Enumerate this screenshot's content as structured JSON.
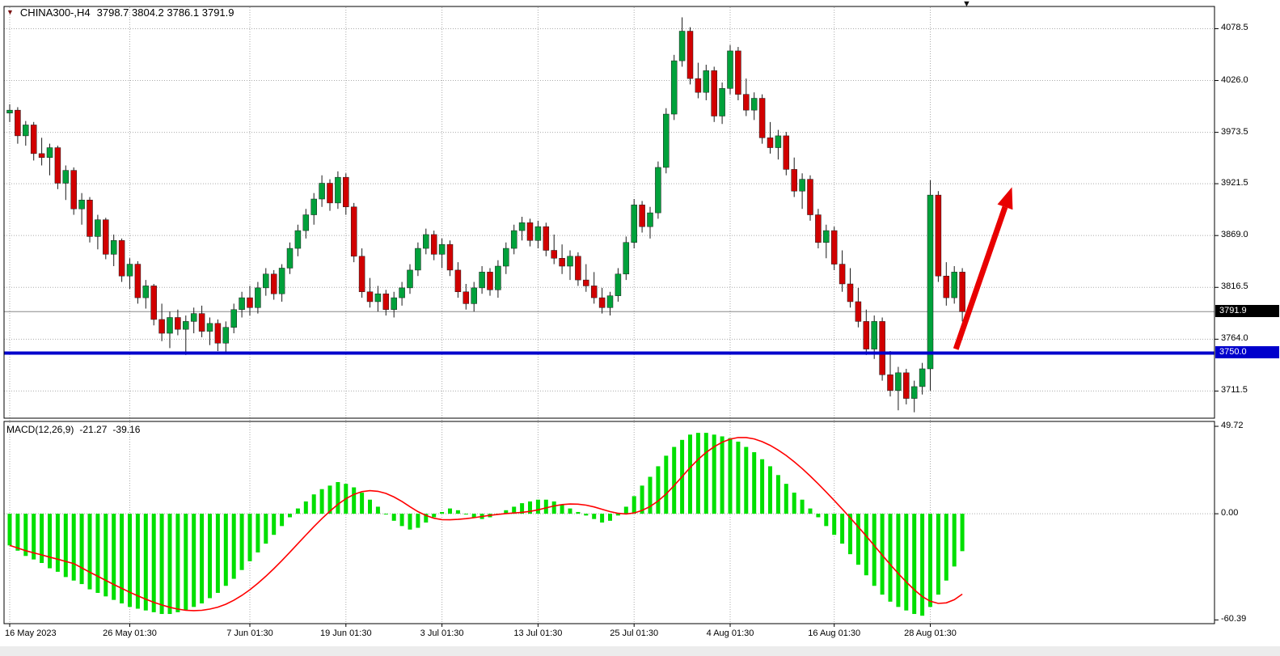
{
  "header": {
    "symbol": "CHINA300-,H4",
    "quote_line": "3798.7 3804.2 3786.1 3791.9"
  },
  "icons": {
    "symbol_marker": "▼",
    "shift_marker": "▼"
  },
  "indicator": {
    "label": "MACD(12,26,9)",
    "macd_value": "-21.27",
    "signal_value": "-39.16"
  },
  "axis": {
    "current_price_label": "3791.9",
    "support_price_label": "3750.0"
  },
  "colors": {
    "candle_up": "#00A13B",
    "candle_down": "#D10000",
    "candle_outline": "#1a1a1a",
    "macd_bar": "#00DF00",
    "signal_line": "#FF0000",
    "support_line": "#0000CC",
    "current_price_line": "#888888",
    "grid": "#ababab",
    "arrow": "#E80000",
    "price_tag_bg": "#000000",
    "support_tag_bg": "#0000CC"
  },
  "chart_data": [
    {
      "type": "candlestick",
      "title": "CHINA300-,H4",
      "timeframe": "H4",
      "quote": {
        "open": 3798.7,
        "high": 3804.2,
        "low": 3786.1,
        "close": 3791.9
      },
      "current_price": 3791.9,
      "support_level": 3750.0,
      "ylim": [
        3684,
        4101
      ],
      "y_ticks": [
        "4078.5",
        "4026.0",
        "3973.5",
        "3921.5",
        "3869.0",
        "3816.5",
        "3764.0",
        "3711.5"
      ],
      "x_labels": [
        {
          "text": "16 May 2023",
          "i": 0
        },
        {
          "text": "26 May 01:30",
          "i": 15
        },
        {
          "text": "7 Jun 01:30",
          "i": 30
        },
        {
          "text": "19 Jun 01:30",
          "i": 42
        },
        {
          "text": "3 Jul 01:30",
          "i": 54
        },
        {
          "text": "13 Jul 01:30",
          "i": 66
        },
        {
          "text": "25 Jul 01:30",
          "i": 78
        },
        {
          "text": "4 Aug 01:30",
          "i": 90
        },
        {
          "text": "16 Aug 01:30",
          "i": 103
        },
        {
          "text": "28 Aug 01:30",
          "i": 115
        }
      ],
      "annotations": [
        {
          "type": "arrow",
          "from_bar": 118.2,
          "from_price": 3754,
          "to_bar": 125.2,
          "to_price": 3918
        }
      ],
      "candles": [
        [
          3993,
          4002,
          3984,
          3996
        ],
        [
          3996,
          3999,
          3962,
          3970
        ],
        [
          3970,
          3985,
          3960,
          3981
        ],
        [
          3981,
          3984,
          3945,
          3952
        ],
        [
          3952,
          3968,
          3940,
          3948
        ],
        [
          3948,
          3962,
          3930,
          3958
        ],
        [
          3958,
          3960,
          3916,
          3922
        ],
        [
          3922,
          3940,
          3905,
          3935
        ],
        [
          3935,
          3938,
          3890,
          3896
        ],
        [
          3896,
          3912,
          3880,
          3905
        ],
        [
          3905,
          3908,
          3862,
          3868
        ],
        [
          3868,
          3890,
          3855,
          3885
        ],
        [
          3885,
          3887,
          3845,
          3850
        ],
        [
          3850,
          3870,
          3838,
          3864
        ],
        [
          3864,
          3866,
          3822,
          3828
        ],
        [
          3828,
          3846,
          3815,
          3840
        ],
        [
          3840,
          3843,
          3800,
          3806
        ],
        [
          3806,
          3824,
          3795,
          3818
        ],
        [
          3818,
          3820,
          3778,
          3784
        ],
        [
          3784,
          3800,
          3762,
          3770
        ],
        [
          3770,
          3792,
          3755,
          3786
        ],
        [
          3786,
          3794,
          3768,
          3774
        ],
        [
          3774,
          3788,
          3748,
          3782
        ],
        [
          3782,
          3796,
          3770,
          3790
        ],
        [
          3790,
          3798,
          3766,
          3772
        ],
        [
          3772,
          3786,
          3758,
          3780
        ],
        [
          3780,
          3784,
          3752,
          3760
        ],
        [
          3760,
          3782,
          3750,
          3776
        ],
        [
          3776,
          3800,
          3770,
          3794
        ],
        [
          3794,
          3812,
          3786,
          3806
        ],
        [
          3806,
          3818,
          3788,
          3796
        ],
        [
          3796,
          3822,
          3790,
          3816
        ],
        [
          3816,
          3836,
          3808,
          3830
        ],
        [
          3830,
          3834,
          3804,
          3810
        ],
        [
          3810,
          3840,
          3802,
          3836
        ],
        [
          3836,
          3862,
          3830,
          3856
        ],
        [
          3856,
          3880,
          3848,
          3874
        ],
        [
          3874,
          3896,
          3866,
          3890
        ],
        [
          3890,
          3912,
          3880,
          3906
        ],
        [
          3906,
          3930,
          3898,
          3922
        ],
        [
          3922,
          3926,
          3894,
          3902
        ],
        [
          3902,
          3934,
          3896,
          3928
        ],
        [
          3928,
          3932,
          3890,
          3898
        ],
        [
          3898,
          3902,
          3842,
          3848
        ],
        [
          3848,
          3856,
          3806,
          3812
        ],
        [
          3812,
          3826,
          3796,
          3802
        ],
        [
          3802,
          3818,
          3792,
          3810
        ],
        [
          3810,
          3814,
          3788,
          3794
        ],
        [
          3794,
          3812,
          3786,
          3806
        ],
        [
          3806,
          3822,
          3798,
          3816
        ],
        [
          3816,
          3840,
          3810,
          3834
        ],
        [
          3834,
          3862,
          3828,
          3856
        ],
        [
          3856,
          3876,
          3850,
          3870
        ],
        [
          3870,
          3874,
          3844,
          3850
        ],
        [
          3850,
          3866,
          3836,
          3860
        ],
        [
          3860,
          3864,
          3828,
          3834
        ],
        [
          3834,
          3842,
          3806,
          3812
        ],
        [
          3812,
          3820,
          3794,
          3800
        ],
        [
          3800,
          3822,
          3792,
          3816
        ],
        [
          3816,
          3838,
          3810,
          3832
        ],
        [
          3832,
          3836,
          3808,
          3814
        ],
        [
          3814,
          3844,
          3806,
          3838
        ],
        [
          3838,
          3862,
          3830,
          3856
        ],
        [
          3856,
          3880,
          3850,
          3874
        ],
        [
          3874,
          3888,
          3864,
          3882
        ],
        [
          3882,
          3886,
          3858,
          3864
        ],
        [
          3864,
          3884,
          3856,
          3878
        ],
        [
          3878,
          3882,
          3848,
          3854
        ],
        [
          3854,
          3870,
          3840,
          3846
        ],
        [
          3846,
          3860,
          3830,
          3838
        ],
        [
          3838,
          3854,
          3824,
          3848
        ],
        [
          3848,
          3852,
          3818,
          3824
        ],
        [
          3824,
          3840,
          3812,
          3818
        ],
        [
          3818,
          3832,
          3800,
          3806
        ],
        [
          3806,
          3816,
          3790,
          3796
        ],
        [
          3796,
          3812,
          3788,
          3808
        ],
        [
          3808,
          3836,
          3802,
          3830
        ],
        [
          3830,
          3868,
          3824,
          3862
        ],
        [
          3862,
          3906,
          3856,
          3900
        ],
        [
          3900,
          3904,
          3872,
          3878
        ],
        [
          3878,
          3898,
          3866,
          3892
        ],
        [
          3892,
          3944,
          3886,
          3938
        ],
        [
          3938,
          3998,
          3932,
          3992
        ],
        [
          3992,
          4052,
          3986,
          4046
        ],
        [
          4046,
          4090,
          4040,
          4076
        ],
        [
          4076,
          4080,
          4022,
          4028
        ],
        [
          4028,
          4044,
          4008,
          4014
        ],
        [
          4014,
          4042,
          4006,
          4036
        ],
        [
          4036,
          4040,
          3984,
          3990
        ],
        [
          3990,
          4024,
          3982,
          4018
        ],
        [
          4018,
          4062,
          4012,
          4056
        ],
        [
          4056,
          4060,
          4006,
          4012
        ],
        [
          4012,
          4028,
          3990,
          3996
        ],
        [
          3996,
          4014,
          3986,
          4008
        ],
        [
          4008,
          4012,
          3962,
          3968
        ],
        [
          3968,
          3984,
          3952,
          3958
        ],
        [
          3958,
          3976,
          3946,
          3970
        ],
        [
          3970,
          3974,
          3930,
          3936
        ],
        [
          3936,
          3948,
          3908,
          3914
        ],
        [
          3914,
          3932,
          3896,
          3926
        ],
        [
          3926,
          3930,
          3884,
          3890
        ],
        [
          3890,
          3896,
          3856,
          3862
        ],
        [
          3862,
          3880,
          3846,
          3874
        ],
        [
          3874,
          3878,
          3834,
          3840
        ],
        [
          3840,
          3854,
          3812,
          3820
        ],
        [
          3820,
          3836,
          3796,
          3802
        ],
        [
          3802,
          3816,
          3776,
          3782
        ],
        [
          3782,
          3794,
          3748,
          3754
        ],
        [
          3754,
          3788,
          3744,
          3782
        ],
        [
          3782,
          3786,
          3722,
          3728
        ],
        [
          3728,
          3752,
          3706,
          3712
        ],
        [
          3712,
          3736,
          3692,
          3730
        ],
        [
          3730,
          3734,
          3698,
          3704
        ],
        [
          3704,
          3722,
          3690,
          3716
        ],
        [
          3716,
          3740,
          3708,
          3734
        ],
        [
          3734,
          3925,
          3712,
          3910
        ],
        [
          3910,
          3914,
          3822,
          3828
        ],
        [
          3828,
          3842,
          3798,
          3806
        ],
        [
          3806,
          3838,
          3800,
          3832
        ],
        [
          3832,
          3836,
          3782,
          3791.9
        ]
      ]
    },
    {
      "type": "macd",
      "label": "MACD(12,26,9)",
      "macd_value": -21.27,
      "signal_value": -39.16,
      "signal_period": 9,
      "ylim": [
        -62.5,
        52.5
      ],
      "y_ticks": [
        "49.72",
        "0.00",
        "-60.39"
      ],
      "values": [
        -18,
        -21,
        -24,
        -26,
        -28,
        -31,
        -33,
        -36,
        -38,
        -40,
        -43,
        -45,
        -47,
        -49,
        -51,
        -53,
        -54,
        -55,
        -56,
        -57,
        -57,
        -56,
        -55,
        -53,
        -51,
        -48,
        -45,
        -41,
        -37,
        -32,
        -27,
        -22,
        -17,
        -12,
        -7,
        -2,
        3,
        7,
        11,
        14,
        16,
        18,
        17,
        15,
        12,
        8,
        4,
        0,
        -4,
        -7,
        -9,
        -8,
        -5,
        -2,
        1,
        3,
        2,
        0,
        -2,
        -3,
        -2,
        0,
        2,
        4,
        6,
        7,
        8,
        8,
        7,
        5,
        3,
        1,
        -1,
        -3,
        -5,
        -4,
        -1,
        4,
        10,
        16,
        21,
        27,
        33,
        38,
        42,
        45,
        46,
        46,
        45,
        44,
        43,
        41,
        38,
        35,
        31,
        27,
        22,
        17,
        12,
        8,
        3,
        -2,
        -7,
        -12,
        -17,
        -23,
        -29,
        -35,
        -41,
        -46,
        -50,
        -53,
        -55,
        -57,
        -58,
        -53,
        -46,
        -38,
        -30,
        -21.27
      ]
    }
  ]
}
